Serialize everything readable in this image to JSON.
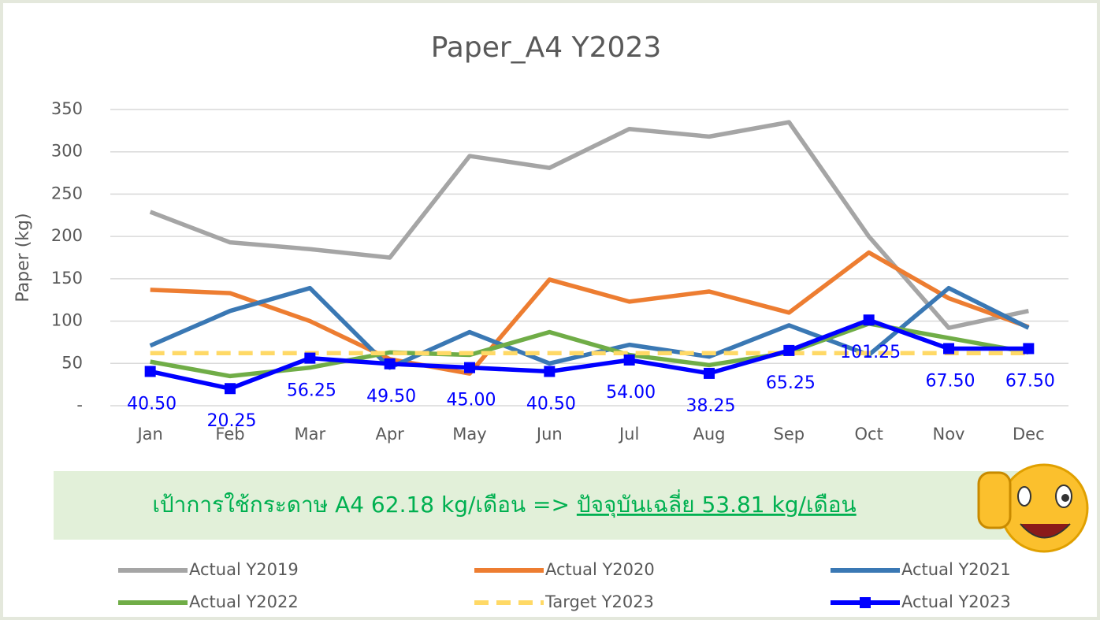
{
  "chart_data": {
    "type": "line",
    "title": "Paper_A4 Y2023",
    "y_label": "Paper (kg)",
    "categories": [
      "Jan",
      "Feb",
      "Mar",
      "Apr",
      "May",
      "Jun",
      "Jul",
      "Aug",
      "Sep",
      "Oct",
      "Nov",
      "Dec"
    ],
    "ylim": [
      0,
      350
    ],
    "yticks": [
      {
        "value": 0,
        "label": "-"
      },
      50,
      100,
      150,
      200,
      250,
      300,
      350
    ],
    "grid": true,
    "legend": "bottom",
    "series": [
      {
        "name": "Actual Y2019",
        "color": "#a5a5a5",
        "values": [
          229,
          193,
          185,
          175,
          295,
          281,
          327,
          318,
          335,
          200,
          92,
          112
        ]
      },
      {
        "name": "Actual Y2020",
        "color": "#ed7d31",
        "values": [
          137,
          133,
          100,
          55,
          38,
          149,
          123,
          135,
          110,
          181,
          127,
          93
        ]
      },
      {
        "name": "Actual Y2021",
        "color": "#3a78b4",
        "values": [
          71,
          112,
          139,
          45,
          87,
          50,
          72,
          58,
          95,
          60,
          139,
          92
        ]
      },
      {
        "name": "Actual Y2022",
        "color": "#70ad47",
        "values": [
          52,
          35,
          45,
          63,
          60,
          87,
          60,
          48,
          63,
          97,
          80,
          63
        ]
      },
      {
        "name": "Target Y2023",
        "color": "#ffd966",
        "dashed": true,
        "values": [
          62.18,
          62.18,
          62.18,
          62.18,
          62.18,
          62.18,
          62.18,
          62.18,
          62.18,
          62.18,
          62.18,
          62.18
        ]
      },
      {
        "name": "Actual Y2023",
        "color": "#0000ff",
        "marker": "square",
        "values": [
          40.5,
          20.25,
          56.25,
          49.5,
          45,
          40.5,
          54,
          38.25,
          65.25,
          101.25,
          67.5,
          67.5
        ],
        "value_labels": [
          "40.50",
          "20.25",
          "56.25",
          "49.50",
          "45.00",
          "40.50",
          "54.00",
          "38.25",
          "65.25",
          "101.25",
          "67.50",
          "67.50"
        ]
      }
    ],
    "annotation": {
      "target": "เป้าการใช้กระดาษ A4 62.18 kg/เดือน => ",
      "current": "ปัจจุบันเฉลี่ย 53.81 kg/เดือน"
    }
  }
}
